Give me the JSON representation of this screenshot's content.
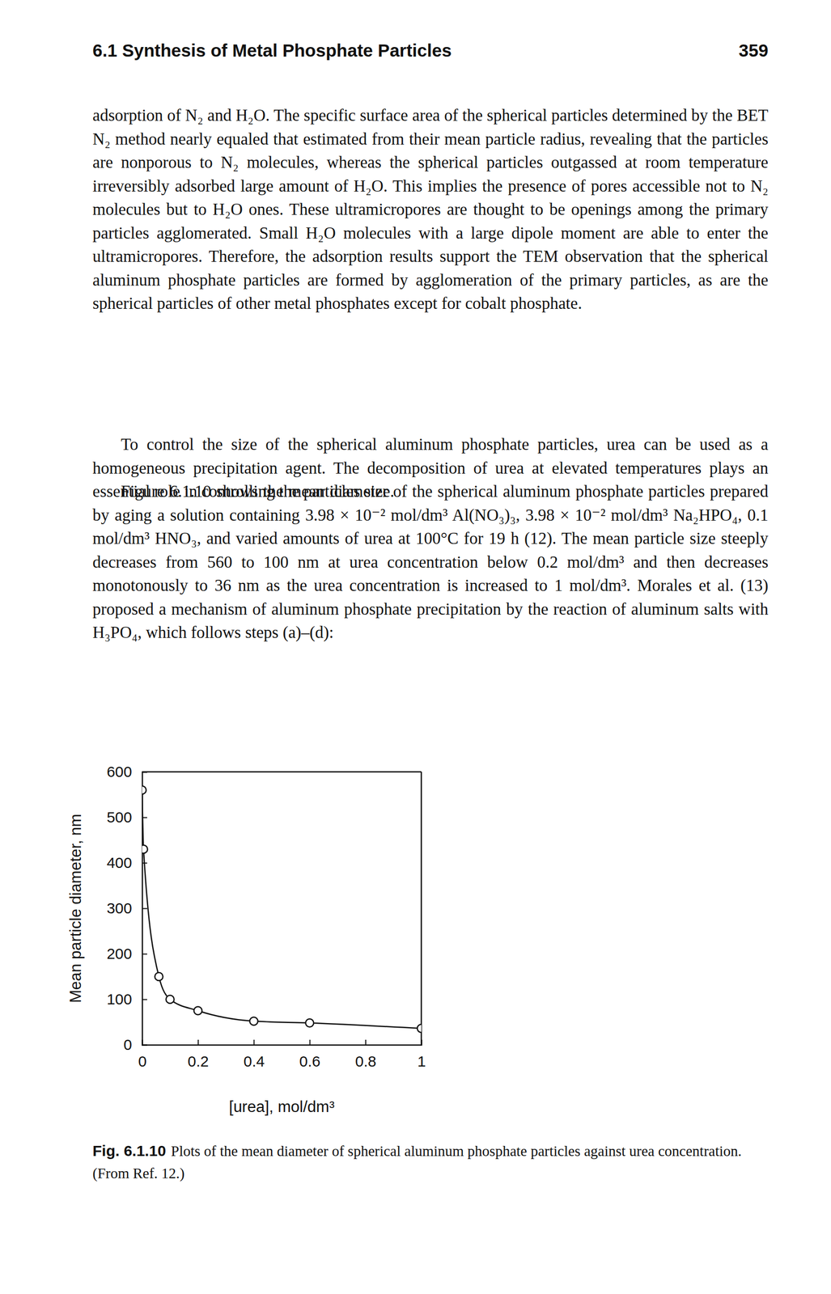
{
  "header": {
    "section": "6.1 Synthesis of Metal Phosphate Particles",
    "page_number": "359"
  },
  "paragraphs": [
    "adsorption of N₂ and H₂O. The specific surface area of the spherical particles determined by the BET N₂ method nearly equaled that estimated from their mean particle radius, revealing that the particles are nonporous to N₂ molecules, whereas the spherical particles outgassed at room temperature irreversibly adsorbed large amount of H₂O. This implies the presence of pores accessible not to N₂ molecules but to H₂O ones. These ultramicropores are thought to be openings among the primary particles agglomerated. Small H₂O molecules with a large dipole moment are able to enter the ultramicropores. Therefore, the adsorption results support the TEM observation that the spherical aluminum phosphate particles are formed by agglomeration of the primary particles, as are the spherical particles of other metal phosphates except for cobalt phosphate.",
    "To control the size of the spherical aluminum phosphate particles, urea can be used as a homogeneous precipitation agent. The decomposition of urea at elevated temperatures plays an essential role in controlling the particles size.",
    "Figure 6.1.10 shows the mean diameter of the spherical aluminum phosphate particles prepared by aging a solution containing 3.98 × 10⁻² mol/dm³ Al(NO₃)₃, 3.98 × 10⁻² mol/dm³ Na₂HPO₄, 0.1 mol/dm³ HNO₃, and varied amounts of urea at 100°C for 19 h (12). The mean particle size steeply decreases from 560 to 100 nm at urea concentration below 0.2 mol/dm³ and then decreases monotonously to 36 nm as the urea concentration is increased to 1 mol/dm³. Morales et al. (13) proposed a mechanism of aluminum phosphate precipitation by the reaction of aluminum salts with H₃PO₄, which follows steps (a)–(d):"
  ],
  "chart_data": {
    "type": "line",
    "x_label": "[urea], mol/dm³",
    "y_label": "Mean particle diameter, nm",
    "x": [
      0,
      0.005,
      0.06,
      0.1,
      0.2,
      0.4,
      0.6,
      1.0
    ],
    "values": [
      560,
      430,
      150,
      100,
      75,
      52,
      48,
      36
    ],
    "color": "#111111",
    "marker": "circle",
    "line_style": "solid",
    "xlim": [
      0,
      1
    ],
    "xticks": [
      0,
      0.2,
      0.4,
      0.6,
      0.8,
      1
    ],
    "ylim": [
      0,
      600
    ],
    "yticks": [
      0,
      100,
      200,
      300,
      400,
      500,
      600
    ],
    "grid": false
  },
  "caption": {
    "label": "Fig. 6.1.10",
    "text": "Plots of the mean diameter of spherical aluminum phosphate particles against urea concentration. (From Ref. 12.)"
  }
}
